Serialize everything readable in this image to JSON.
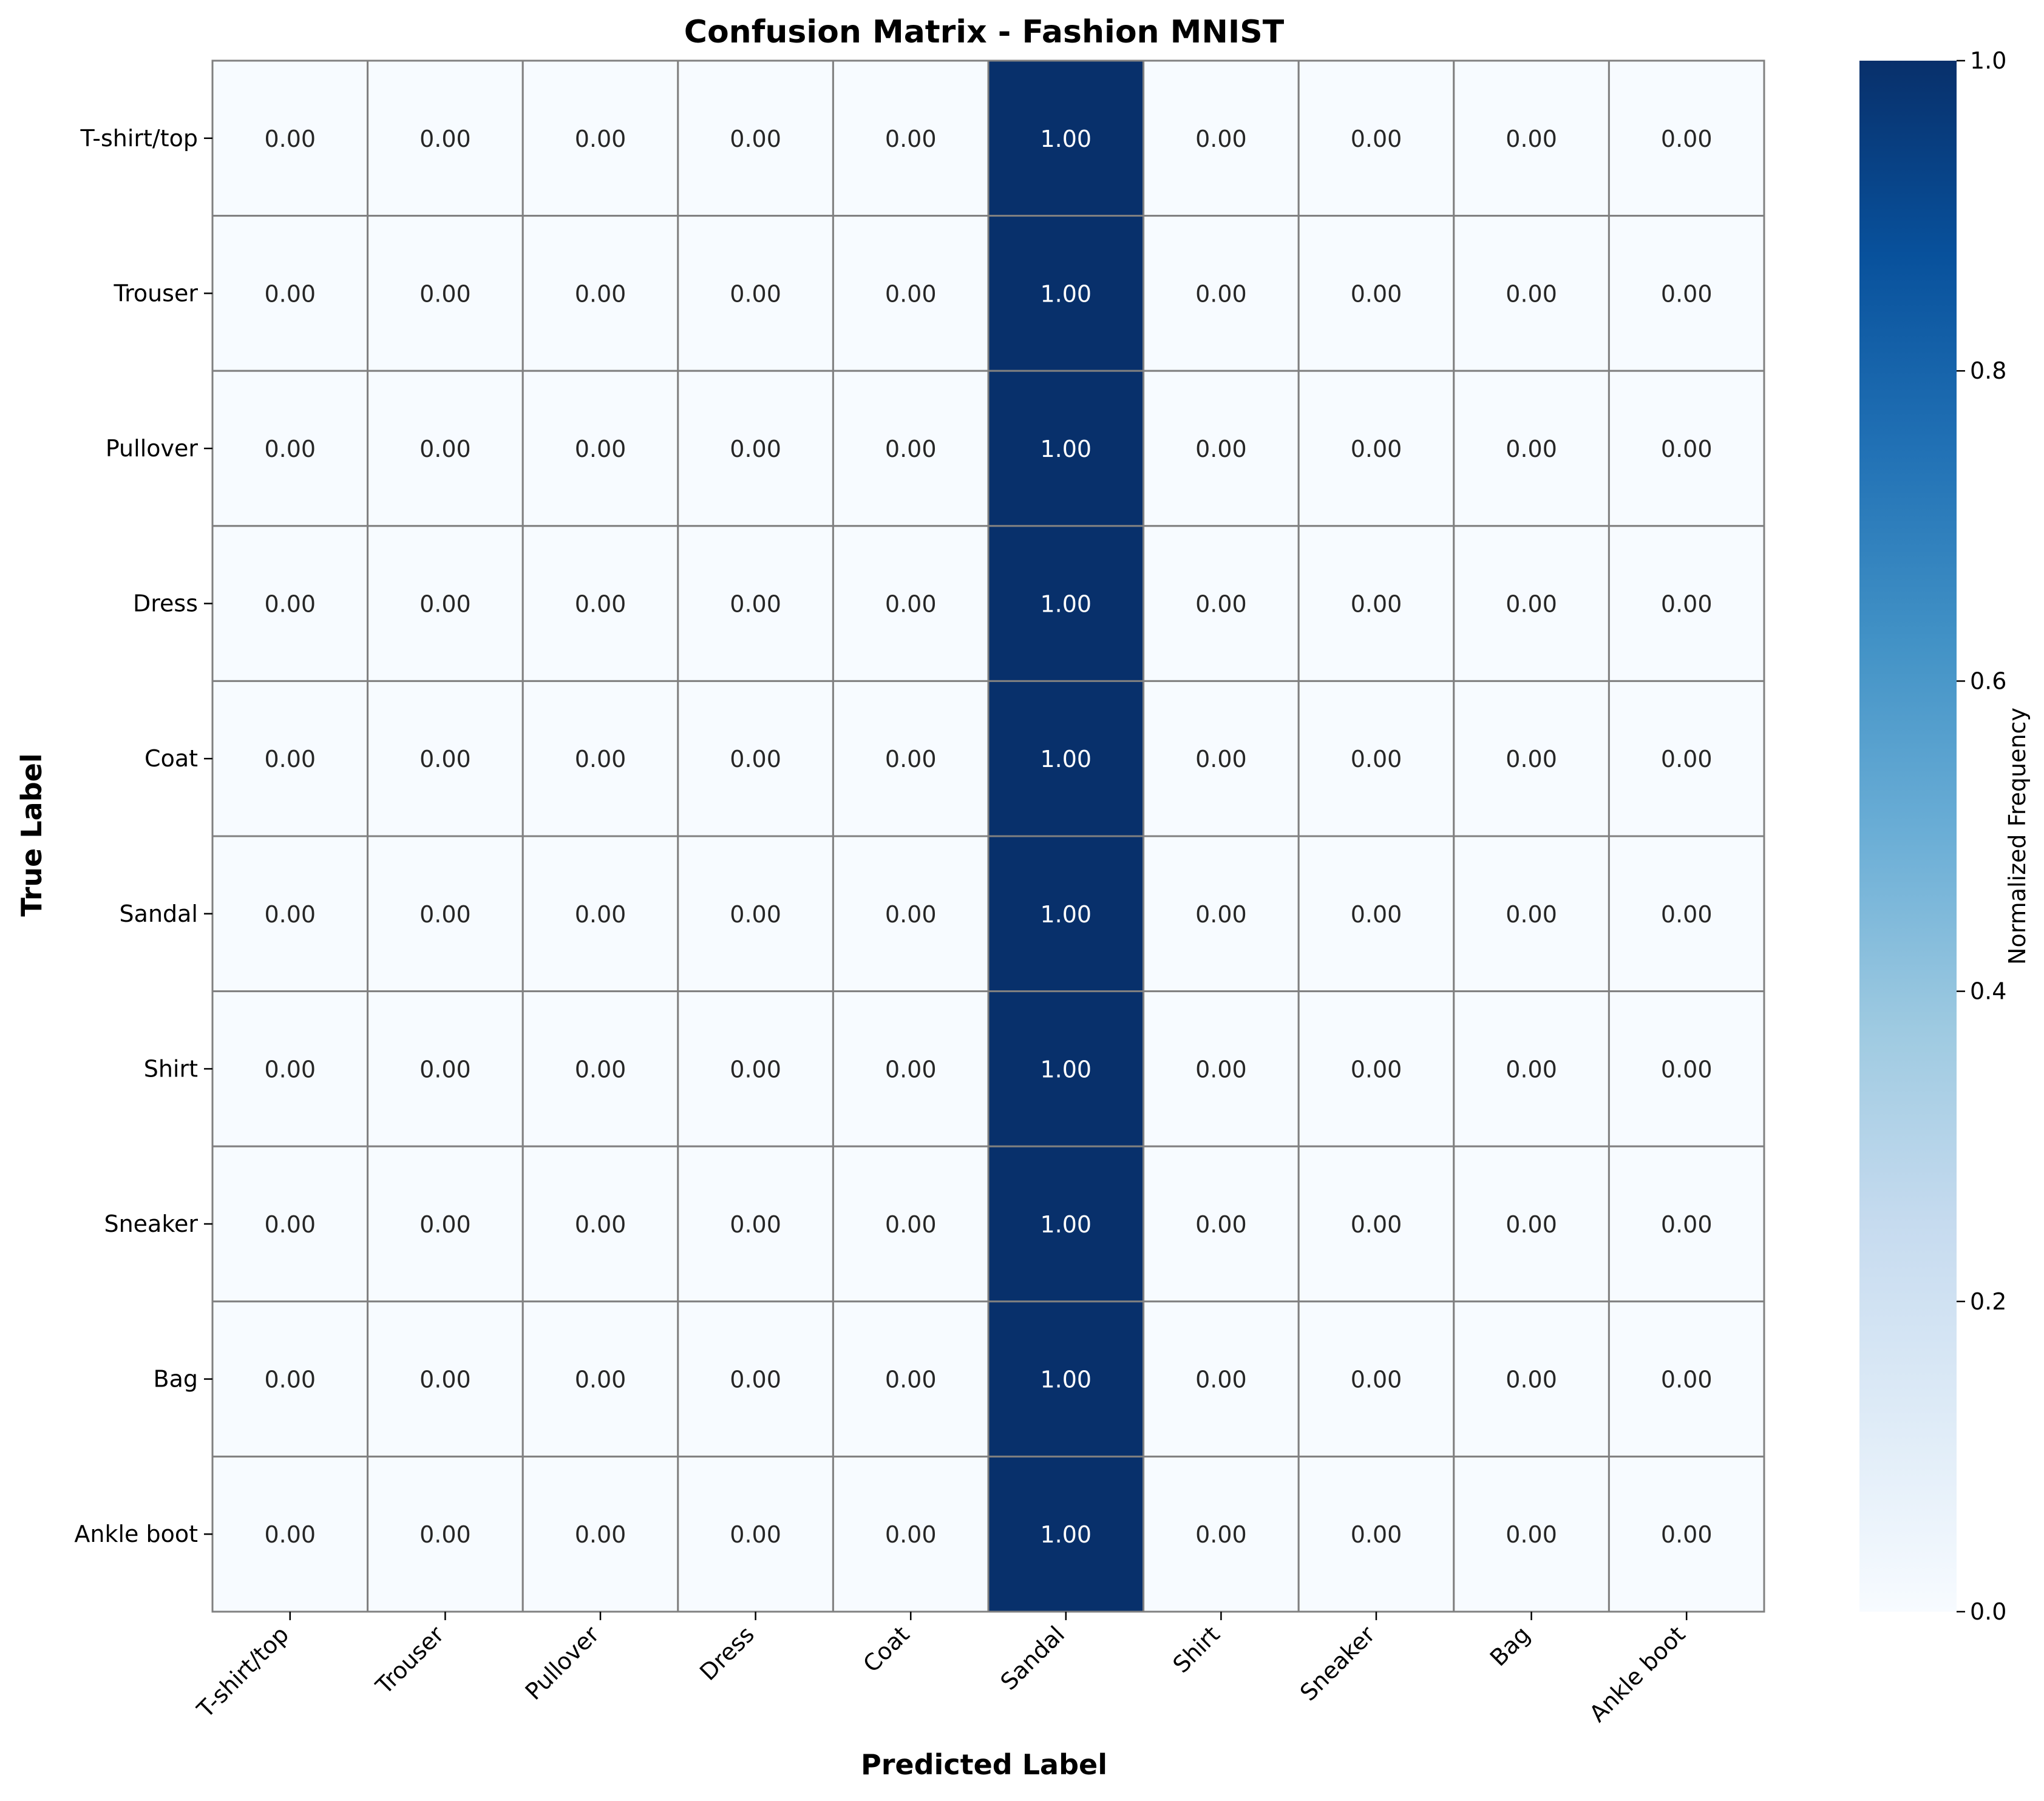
{
  "chart_data": {
    "type": "heatmap",
    "title": "Confusion Matrix - Fashion MNIST",
    "xlabel": "Predicted Label",
    "ylabel": "True Label",
    "x_categories": [
      "T-shirt/top",
      "Trouser",
      "Pullover",
      "Dress",
      "Coat",
      "Sandal",
      "Shirt",
      "Sneaker",
      "Bag",
      "Ankle boot"
    ],
    "y_categories": [
      "T-shirt/top",
      "Trouser",
      "Pullover",
      "Dress",
      "Coat",
      "Sandal",
      "Shirt",
      "Sneaker",
      "Bag",
      "Ankle boot"
    ],
    "values": [
      [
        0,
        0,
        0,
        0,
        0,
        1,
        0,
        0,
        0,
        0
      ],
      [
        0,
        0,
        0,
        0,
        0,
        1,
        0,
        0,
        0,
        0
      ],
      [
        0,
        0,
        0,
        0,
        0,
        1,
        0,
        0,
        0,
        0
      ],
      [
        0,
        0,
        0,
        0,
        0,
        1,
        0,
        0,
        0,
        0
      ],
      [
        0,
        0,
        0,
        0,
        0,
        1,
        0,
        0,
        0,
        0
      ],
      [
        0,
        0,
        0,
        0,
        0,
        1,
        0,
        0,
        0,
        0
      ],
      [
        0,
        0,
        0,
        0,
        0,
        1,
        0,
        0,
        0,
        0
      ],
      [
        0,
        0,
        0,
        0,
        0,
        1,
        0,
        0,
        0,
        0
      ],
      [
        0,
        0,
        0,
        0,
        0,
        1,
        0,
        0,
        0,
        0
      ],
      [
        0,
        0,
        0,
        0,
        0,
        1,
        0,
        0,
        0,
        0
      ]
    ],
    "value_labels": [
      [
        "0.00",
        "0.00",
        "0.00",
        "0.00",
        "0.00",
        "1.00",
        "0.00",
        "0.00",
        "0.00",
        "0.00"
      ],
      [
        "0.00",
        "0.00",
        "0.00",
        "0.00",
        "0.00",
        "1.00",
        "0.00",
        "0.00",
        "0.00",
        "0.00"
      ],
      [
        "0.00",
        "0.00",
        "0.00",
        "0.00",
        "0.00",
        "1.00",
        "0.00",
        "0.00",
        "0.00",
        "0.00"
      ],
      [
        "0.00",
        "0.00",
        "0.00",
        "0.00",
        "0.00",
        "1.00",
        "0.00",
        "0.00",
        "0.00",
        "0.00"
      ],
      [
        "0.00",
        "0.00",
        "0.00",
        "0.00",
        "0.00",
        "1.00",
        "0.00",
        "0.00",
        "0.00",
        "0.00"
      ],
      [
        "0.00",
        "0.00",
        "0.00",
        "0.00",
        "0.00",
        "1.00",
        "0.00",
        "0.00",
        "0.00",
        "0.00"
      ],
      [
        "0.00",
        "0.00",
        "0.00",
        "0.00",
        "0.00",
        "1.00",
        "0.00",
        "0.00",
        "0.00",
        "0.00"
      ],
      [
        "0.00",
        "0.00",
        "0.00",
        "0.00",
        "0.00",
        "1.00",
        "0.00",
        "0.00",
        "0.00",
        "0.00"
      ],
      [
        "0.00",
        "0.00",
        "0.00",
        "0.00",
        "0.00",
        "1.00",
        "0.00",
        "0.00",
        "0.00",
        "0.00"
      ],
      [
        "0.00",
        "0.00",
        "0.00",
        "0.00",
        "0.00",
        "1.00",
        "0.00",
        "0.00",
        "0.00",
        "0.00"
      ]
    ],
    "colorbar": {
      "label": "Normalized Frequency",
      "range": [
        0,
        1
      ],
      "ticks": [
        0,
        0.2,
        0.4,
        0.6,
        0.8,
        1.0
      ],
      "tick_labels": [
        "0.0",
        "0.2",
        "0.4",
        "0.6",
        "0.8",
        "1.0"
      ]
    },
    "colormap": "Blues",
    "color_low": "#f7fbff",
    "color_high": "#08306b",
    "cell_border_color": "#808080",
    "grid": true
  }
}
